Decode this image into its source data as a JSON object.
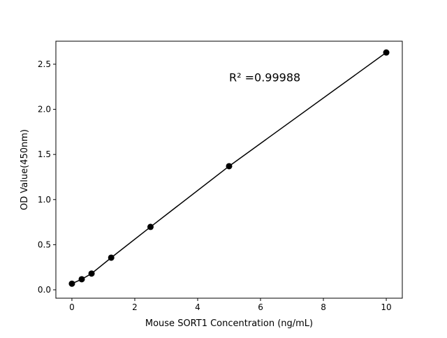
{
  "chart_data": {
    "type": "scatter",
    "title": "",
    "xlabel": "Mouse SORT1 Concentration (ng/mL)",
    "ylabel": "OD Value(450nm)",
    "xlim": [
      -0.51,
      10.51
    ],
    "ylim": [
      -0.093,
      2.755
    ],
    "xticks": [
      0,
      2,
      4,
      6,
      8,
      10
    ],
    "xtick_labels": [
      "0",
      "2",
      "4",
      "6",
      "8",
      "10"
    ],
    "yticks": [
      0,
      0.5,
      1.0,
      1.5,
      2.0,
      2.5
    ],
    "ytick_labels": [
      "0.0",
      "0.5",
      "1.0",
      "1.5",
      "2.0",
      "2.5"
    ],
    "grid": false,
    "color": "#000000",
    "series": [
      {
        "x": [
          0,
          0.3125,
          0.625,
          1.25,
          2.5,
          5,
          10
        ],
        "y": [
          0.068,
          0.117,
          0.18,
          0.356,
          0.697,
          1.37,
          2.63
        ],
        "marker": "circle",
        "line": true
      }
    ],
    "annotations": [
      {
        "text": "R² =0.99988",
        "x": 5,
        "y": 2.35
      }
    ]
  }
}
